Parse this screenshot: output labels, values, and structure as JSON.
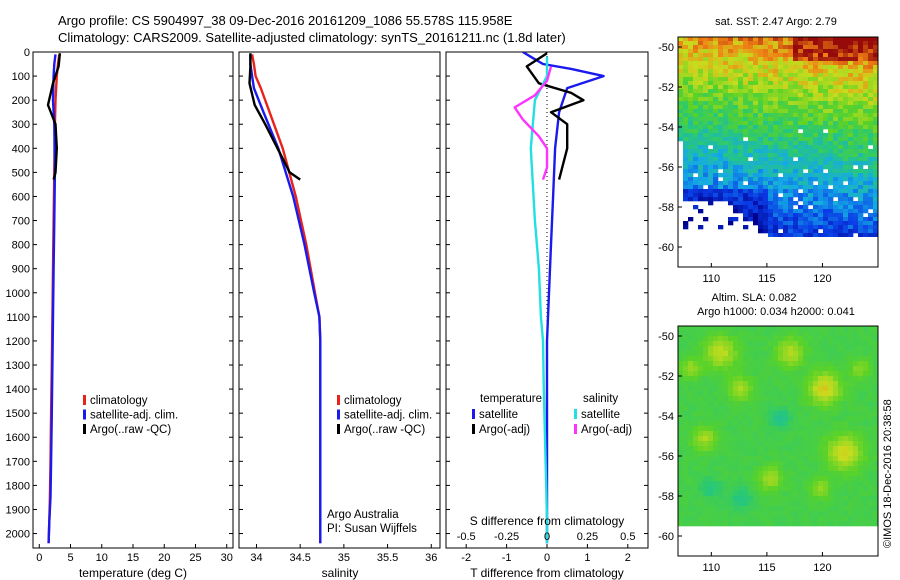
{
  "header": {
    "title_line1": "Argo profile: CS 5904997_38 09-Dec-2016 20161209_1086 55.578S 115.958E",
    "title_line2": "Climatology: CARS2009. Satellite-adjusted climatology: synTS_20161211.nc (1.8d later)"
  },
  "side_stamp": "©IMOS 18-Dec-2016 20:38:58",
  "credit": {
    "line1": "Argo Australia",
    "line2": "PI: Susan Wijffels"
  },
  "colors": {
    "climatology": "#e8231c",
    "satellite": "#1a1aee",
    "argo": "#000000",
    "sat_salinity": "#22e0e0",
    "argo_salinity": "#ff33ff"
  },
  "chart_data": [
    {
      "type": "line",
      "id": "temperature",
      "xlabel": "temperature (deg C)",
      "xlim": [
        -1,
        31
      ],
      "xticks": [
        0,
        5,
        10,
        15,
        20,
        25,
        30
      ],
      "ylim": [
        2060,
        0
      ],
      "yticks": [
        0,
        100,
        200,
        300,
        400,
        500,
        600,
        700,
        800,
        900,
        1000,
        1100,
        1200,
        1300,
        1400,
        1500,
        1600,
        1700,
        1800,
        1900,
        2000
      ],
      "legend": [
        "climatology",
        "satellite-adj. clim.",
        "Argo(..raw -QC)"
      ],
      "series": [
        {
          "name": "climatology",
          "color": "#e8231c",
          "x": [
            3.2,
            3.0,
            2.8,
            2.6,
            2.5,
            2.4,
            2.3,
            2.2,
            2.1,
            2.0,
            1.9,
            1.8,
            1.7,
            1.6,
            1.5
          ],
          "y": [
            10,
            50,
            100,
            200,
            300,
            500,
            700,
            900,
            1100,
            1300,
            1500,
            1700,
            1850,
            1950,
            2040
          ]
        },
        {
          "name": "satellite-adj. clim.",
          "color": "#1a1aee",
          "x": [
            2.6,
            2.4,
            2.3,
            2.2,
            2.4,
            2.5,
            2.4,
            2.3,
            2.2,
            2.1,
            2.0,
            1.9,
            1.8,
            1.6,
            1.5
          ],
          "y": [
            10,
            50,
            100,
            200,
            300,
            500,
            700,
            900,
            1100,
            1300,
            1500,
            1700,
            1850,
            1950,
            2040
          ]
        },
        {
          "name": "Argo(..raw -QC)",
          "color": "#000000",
          "x": [
            3.3,
            3.1,
            2.2,
            1.4,
            2.6,
            2.8,
            2.6,
            2.3
          ],
          "y": [
            5,
            60,
            130,
            220,
            300,
            400,
            500,
            530
          ]
        }
      ]
    },
    {
      "type": "line",
      "id": "salinity",
      "xlabel": "salinity",
      "xlim": [
        33.8,
        36.1
      ],
      "xticks": [
        34,
        34.5,
        35,
        35.5,
        36
      ],
      "ylim": [
        2060,
        0
      ],
      "legend": [
        "climatology",
        "satellite-adj. clim.",
        "Argo(..raw -QC)"
      ],
      "series": [
        {
          "name": "climatology",
          "color": "#e8231c",
          "x": [
            33.95,
            33.97,
            33.99,
            34.05,
            34.15,
            34.3,
            34.45,
            34.57,
            34.67,
            34.72,
            34.73,
            34.73,
            34.73,
            34.73,
            34.73
          ],
          "y": [
            10,
            50,
            100,
            150,
            250,
            400,
            600,
            800,
            1000,
            1100,
            1200,
            1400,
            1600,
            1800,
            2040
          ]
        },
        {
          "name": "satellite-adj. clim.",
          "color": "#1a1aee",
          "x": [
            33.93,
            33.93,
            33.95,
            33.97,
            34.08,
            34.25,
            34.42,
            34.55,
            34.66,
            34.72,
            34.73,
            34.73,
            34.73,
            34.73,
            34.73
          ],
          "y": [
            10,
            50,
            100,
            150,
            250,
            400,
            600,
            800,
            1000,
            1100,
            1200,
            1400,
            1600,
            1800,
            2040
          ]
        },
        {
          "name": "Argo(..raw -QC)",
          "color": "#000000",
          "x": [
            33.93,
            33.93,
            33.92,
            33.98,
            34.1,
            34.24,
            34.38,
            34.5
          ],
          "y": [
            5,
            60,
            130,
            220,
            300,
            400,
            500,
            530
          ]
        }
      ]
    },
    {
      "type": "line",
      "id": "difference",
      "xlabel": "T difference from climatology",
      "top_axis_label": "S difference from climatology",
      "xlim": [
        -2.5,
        2.5
      ],
      "xticks": [
        -2,
        -1,
        0,
        1,
        2
      ],
      "top_xlim": [
        -0.625,
        0.625
      ],
      "top_xticks": [
        "-0.5",
        "-0.25",
        "0",
        "0.25",
        "0.5"
      ],
      "ylim": [
        2060,
        0
      ],
      "legend_left_title": "temperature",
      "legend_right_title": "salinity",
      "legend_left": [
        "satellite",
        "Argo(-adj)"
      ],
      "legend_right": [
        "satellite",
        "Argo(-adj)"
      ],
      "series": [
        {
          "name": "temperature satellite",
          "color": "#1a1aee",
          "x": [
            -0.6,
            -0.4,
            -0.1,
            0.6,
            1.4,
            0.5,
            0.3,
            0.2,
            0.15,
            0.1,
            0.05,
            0.0,
            0.0,
            0.0,
            0.0,
            0.0,
            0.0
          ],
          "y": [
            0,
            20,
            50,
            70,
            100,
            150,
            250,
            400,
            600,
            800,
            1000,
            1200,
            1400,
            1600,
            1800,
            1950,
            2040
          ]
        },
        {
          "name": "temperature Argo(-adj)",
          "color": "#000000",
          "x": [
            0.0,
            -0.5,
            -0.2,
            0.6,
            0.9,
            0.1,
            0.5,
            0.5,
            0.3
          ],
          "y": [
            5,
            60,
            130,
            170,
            200,
            250,
            300,
            400,
            530
          ]
        },
        {
          "name": "salinity satellite",
          "color": "#22e0e0",
          "x": [
            0.0,
            0.0,
            -0.3,
            -0.4,
            -0.3,
            -0.2,
            -0.15,
            -0.1,
            -0.08,
            -0.05,
            -0.02,
            0.0,
            0.0
          ],
          "y": [
            20,
            100,
            200,
            400,
            700,
            900,
            1100,
            1200,
            1400,
            1600,
            1800,
            1950,
            2040
          ]
        },
        {
          "name": "salinity Argo(-adj)",
          "color": "#ff33ff",
          "x": [
            0.1,
            0.0,
            -0.3,
            -0.8,
            -0.6,
            -0.2,
            0.0,
            0.0,
            -0.1
          ],
          "y": [
            60,
            120,
            180,
            230,
            280,
            350,
            400,
            480,
            530
          ]
        }
      ]
    },
    {
      "type": "heatmap",
      "id": "sst_map",
      "title": "sat. SST: 2.47  Argo: 2.79",
      "xlim": [
        107,
        125
      ],
      "ylim": [
        -61,
        -49.5
      ],
      "xticks": [
        110,
        115,
        120
      ],
      "yticks": [
        -50,
        -52,
        -54,
        -56,
        -58,
        -60
      ]
    },
    {
      "type": "heatmap",
      "id": "sla_map",
      "title_line1": "Altim. SLA: 0.082",
      "title_line2": "Argo h1000: 0.034 h2000: 0.041",
      "xlim": [
        107,
        125
      ],
      "ylim": [
        -61,
        -49.5
      ],
      "xticks": [
        110,
        115,
        120
      ],
      "yticks": [
        -50,
        -52,
        -54,
        -56,
        -58,
        -60
      ]
    }
  ]
}
